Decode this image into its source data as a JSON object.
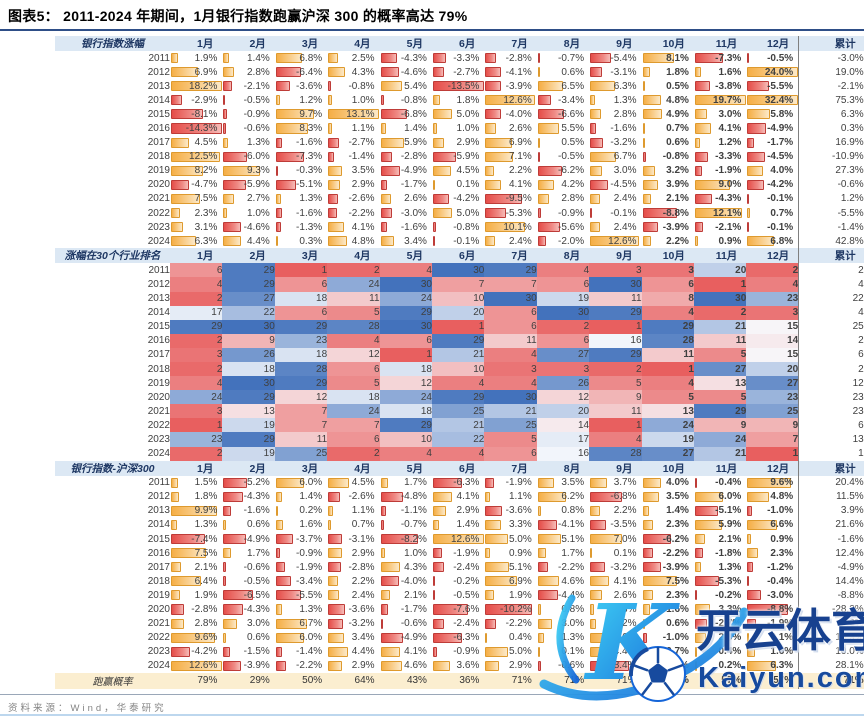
{
  "page": {
    "title": "图表5：  2011-2024 年期间，1月银行指数跑赢沪深 300 的概率高达 79%",
    "source": "资料来源：Wind，华泰研究"
  },
  "watermark": {
    "brand": "开云体育",
    "site": "Kaiyun.com",
    "k_letter": "K"
  },
  "style": {
    "navy": "#1F3864",
    "header_bg": "#DCE8F4",
    "positive_bar": "#F5AE45",
    "negative_bar": "#E54D49",
    "heat_red": "#E85F5F",
    "heat_blue": "#4372BC",
    "prob_bg": "#FBEED0"
  },
  "chart_data": {
    "type": "table",
    "title": "图表5：2011-2024 年期间，1月银行指数跑赢沪深 300 的概率高达 79%",
    "months": [
      "1月",
      "2月",
      "3月",
      "4月",
      "5月",
      "6月",
      "7月",
      "8月",
      "9月",
      "10月",
      "11月",
      "12月"
    ],
    "cumulative_label": "累计",
    "sections": [
      {
        "label": "银行指数涨幅",
        "kind": "databar",
        "unit": "%",
        "bar_scale": 13,
        "rows": [
          {
            "year": "2011",
            "values": [
              1.9,
              1.4,
              6.8,
              2.5,
              -4.3,
              -3.3,
              -2.8,
              -0.7,
              -5.4,
              8.1,
              -7.3,
              -0.5
            ],
            "cum": -3.0
          },
          {
            "year": "2012",
            "values": [
              6.9,
              2.8,
              -6.4,
              4.3,
              -4.6,
              -2.7,
              -4.1,
              0.6,
              -3.1,
              1.8,
              1.6,
              24.0
            ],
            "cum": 19.0
          },
          {
            "year": "2013",
            "values": [
              18.2,
              -2.1,
              -3.6,
              -0.8,
              5.4,
              -13.5,
              -3.9,
              6.5,
              6.3,
              0.5,
              -3.8,
              -5.5
            ],
            "cum": -2.1
          },
          {
            "year": "2014",
            "values": [
              -2.9,
              -0.5,
              1.2,
              1.0,
              -0.8,
              1.8,
              12.6,
              -3.4,
              1.3,
              4.8,
              19.7,
              32.4
            ],
            "cum": 75.3
          },
          {
            "year": "2015",
            "values": [
              -8.1,
              -0.9,
              9.7,
              13.1,
              -6.8,
              5.0,
              -4.0,
              -6.6,
              2.8,
              4.9,
              3.0,
              5.8
            ],
            "cum": 6.3
          },
          {
            "year": "2016",
            "values": [
              -14.3,
              -0.6,
              8.3,
              1.1,
              1.4,
              1.0,
              2.6,
              5.5,
              -1.6,
              0.7,
              4.1,
              -4.9
            ],
            "cum": 0.3
          },
          {
            "year": "2017",
            "values": [
              4.5,
              1.3,
              -1.6,
              -2.7,
              5.9,
              2.9,
              6.9,
              0.5,
              -3.2,
              0.6,
              1.2,
              -1.7
            ],
            "cum": 16.9
          },
          {
            "year": "2018",
            "values": [
              12.5,
              -6.0,
              -7.3,
              -1.4,
              -2.8,
              -5.9,
              7.1,
              -0.5,
              6.7,
              -0.8,
              -3.3,
              -4.5
            ],
            "cum": -10.9
          },
          {
            "year": "2019",
            "values": [
              8.2,
              9.3,
              -0.3,
              3.5,
              -4.9,
              4.5,
              2.2,
              -6.2,
              3.0,
              3.2,
              -1.9,
              4.0
            ],
            "cum": 27.3
          },
          {
            "year": "2020",
            "values": [
              -4.7,
              -5.9,
              -5.1,
              2.9,
              -1.7,
              0.1,
              4.1,
              4.2,
              -4.5,
              3.9,
              9.0,
              -4.2
            ],
            "cum": -0.6
          },
          {
            "year": "2021",
            "values": [
              7.5,
              2.7,
              1.3,
              -2.6,
              2.6,
              -4.2,
              -9.5,
              2.8,
              2.4,
              2.1,
              -4.3,
              -0.1
            ],
            "cum": 1.2
          },
          {
            "year": "2022",
            "values": [
              2.3,
              1.0,
              -1.6,
              -2.2,
              -3.0,
              5.0,
              -5.3,
              -0.9,
              -0.1,
              -8.8,
              12.1,
              0.7
            ],
            "cum": -5.5
          },
          {
            "year": "2023",
            "values": [
              3.1,
              -4.6,
              -1.3,
              4.1,
              -1.6,
              -0.8,
              10.1,
              -5.6,
              2.4,
              -3.9,
              -2.1,
              -0.1
            ],
            "cum": -1.4
          },
          {
            "year": "2024",
            "values": [
              6.3,
              4.4,
              0.3,
              4.8,
              3.4,
              -0.1,
              2.4,
              -2.0,
              12.6,
              2.2,
              0.9,
              6.8
            ],
            "cum": 42.8
          }
        ]
      },
      {
        "label": "涨幅在30个行业排名",
        "kind": "heatmap",
        "domain": [
          1,
          30
        ],
        "rows": [
          {
            "year": "2011",
            "values": [
              6,
              29,
              1,
              2,
              4,
              30,
              29,
              4,
              3,
              3,
              20,
              2
            ],
            "cum": 2
          },
          {
            "year": "2012",
            "values": [
              4,
              29,
              6,
              24,
              30,
              7,
              7,
              6,
              30,
              6,
              1,
              4
            ],
            "cum": 4
          },
          {
            "year": "2013",
            "values": [
              2,
              27,
              18,
              11,
              24,
              10,
              30,
              19,
              11,
              8,
              30,
              23
            ],
            "cum": 22
          },
          {
            "year": "2014",
            "values": [
              17,
              22,
              6,
              5,
              29,
              20,
              6,
              30,
              29,
              4,
              2,
              3
            ],
            "cum": 4
          },
          {
            "year": "2015",
            "values": [
              29,
              30,
              29,
              28,
              30,
              1,
              6,
              2,
              1,
              29,
              21,
              15
            ],
            "cum": 25
          },
          {
            "year": "2016",
            "values": [
              2,
              9,
              23,
              4,
              6,
              29,
              11,
              6,
              16,
              28,
              11,
              14
            ],
            "cum": 2
          },
          {
            "year": "2017",
            "values": [
              3,
              26,
              18,
              12,
              1,
              21,
              4,
              27,
              29,
              11,
              5,
              15
            ],
            "cum": 6
          },
          {
            "year": "2018",
            "values": [
              2,
              18,
              28,
              6,
              18,
              10,
              3,
              3,
              2,
              1,
              27,
              20
            ],
            "cum": 2
          },
          {
            "year": "2019",
            "values": [
              4,
              30,
              29,
              5,
              12,
              4,
              4,
              26,
              5,
              4,
              13,
              27
            ],
            "cum": 12
          },
          {
            "year": "2020",
            "values": [
              24,
              29,
              12,
              18,
              24,
              29,
              30,
              12,
              9,
              5,
              5,
              23
            ],
            "cum": 23
          },
          {
            "year": "2021",
            "values": [
              3,
              13,
              7,
              24,
              18,
              25,
              21,
              20,
              11,
              13,
              29,
              25
            ],
            "cum": 23
          },
          {
            "year": "2022",
            "values": [
              1,
              19,
              7,
              7,
              29,
              21,
              25,
              14,
              1,
              24,
              9,
              9
            ],
            "cum": 6
          },
          {
            "year": "2023",
            "values": [
              23,
              29,
              11,
              6,
              10,
              22,
              5,
              17,
              4,
              19,
              24,
              7
            ],
            "cum": 13
          },
          {
            "year": "2024",
            "values": [
              2,
              19,
              25,
              2,
              4,
              4,
              6,
              16,
              28,
              27,
              21,
              1
            ],
            "cum": 1
          }
        ]
      },
      {
        "label": "银行指数-沪深300",
        "kind": "databar",
        "unit": "%",
        "bar_scale": 11,
        "rows": [
          {
            "year": "2011",
            "values": [
              1.5,
              -5.2,
              6.0,
              4.5,
              1.7,
              -6.3,
              -1.9,
              3.5,
              3.7,
              4.0,
              -0.4,
              9.6
            ],
            "cum": 20.4
          },
          {
            "year": "2012",
            "values": [
              1.8,
              -4.3,
              1.4,
              -2.6,
              -4.8,
              4.1,
              1.1,
              6.2,
              -6.8,
              3.5,
              6.0,
              4.8
            ],
            "cum": 11.5
          },
          {
            "year": "2013",
            "values": [
              9.9,
              -1.6,
              0.2,
              1.1,
              -1.1,
              2.9,
              -3.6,
              0.8,
              2.2,
              1.4,
              -5.1,
              -1.0
            ],
            "cum": 3.9
          },
          {
            "year": "2014",
            "values": [
              1.3,
              0.6,
              1.6,
              0.7,
              -0.7,
              1.4,
              3.3,
              -4.1,
              -3.5,
              2.3,
              5.9,
              6.6
            ],
            "cum": 21.6
          },
          {
            "year": "2015",
            "values": [
              -7.4,
              -4.9,
              -3.7,
              -3.1,
              -8.2,
              12.6,
              5.0,
              5.1,
              7.0,
              -6.2,
              2.1,
              0.9
            ],
            "cum": -1.6
          },
          {
            "year": "2016",
            "values": [
              7.5,
              1.7,
              -0.9,
              2.9,
              1.0,
              -1.9,
              0.9,
              1.7,
              0.1,
              -2.2,
              -1.8,
              2.3
            ],
            "cum": 12.4
          },
          {
            "year": "2017",
            "values": [
              2.1,
              -0.6,
              -1.9,
              -2.8,
              4.3,
              -2.4,
              5.1,
              -2.2,
              -3.2,
              -3.9,
              1.3,
              -1.2
            ],
            "cum": -4.9
          },
          {
            "year": "2018",
            "values": [
              6.4,
              -0.5,
              -3.4,
              2.2,
              -4.0,
              -0.2,
              6.9,
              4.6,
              4.1,
              7.5,
              -5.3,
              -0.4
            ],
            "cum": 14.4
          },
          {
            "year": "2019",
            "values": [
              1.9,
              -6.5,
              -5.5,
              2.4,
              2.1,
              -0.5,
              1.9,
              -4.4,
              2.6,
              2.3,
              -0.2,
              -3.0
            ],
            "cum": -8.8
          },
          {
            "year": "2020",
            "values": [
              -2.8,
              -4.3,
              1.3,
              -3.6,
              -1.7,
              -7.6,
              -10.2,
              0.8,
              0.8,
              1.6,
              3.3,
              -8.8
            ],
            "cum": -28.2
          },
          {
            "year": "2021",
            "values": [
              2.8,
              3.0,
              6.7,
              -3.2,
              -0.6,
              -2.4,
              -2.2,
              3.0,
              1.2,
              0.6,
              -2.7,
              -1.9
            ],
            "cum": 4.6
          },
          {
            "year": "2022",
            "values": [
              9.6,
              0.6,
              6.0,
              3.4,
              -4.9,
              -6.3,
              0.4,
              1.3,
              6.6,
              -1.0,
              2.3,
              0.1
            ],
            "cum": 15.9
          },
          {
            "year": "2023",
            "values": [
              -4.2,
              -1.5,
              -1.4,
              4.4,
              4.1,
              -0.9,
              5.0,
              0.1,
              4.4,
              -0.7,
              0.4,
              1.6
            ],
            "cum": 10.0
          },
          {
            "year": "2024",
            "values": [
              12.6,
              -3.9,
              -2.2,
              2.9,
              4.6,
              3.6,
              2.9,
              -0.6,
              -8.4,
              0.2,
              0.2,
              6.3
            ],
            "cum": 28.1
          }
        ]
      }
    ],
    "footer_row": {
      "label": "跑赢概率",
      "values": [
        "79%",
        "29%",
        "50%",
        "64%",
        "43%",
        "36%",
        "71%",
        "71%",
        "71%",
        "64%",
        "57%",
        "57%"
      ],
      "cum": "71%"
    }
  }
}
